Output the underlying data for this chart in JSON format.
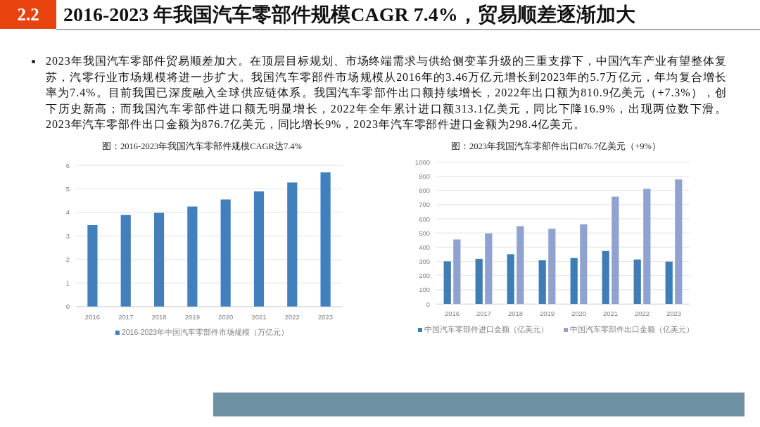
{
  "chart_data": [
    {
      "type": "other",
      "title": "2016-2023 年我国汽车零部件规模CAGR 7.4%，贸易顺差逐渐加大",
      "annotations": [
        "2.2",
        "2023年我国汽车零部件贸易顺差加大。在顶层目标规划、市场终端需求与供给侧变革升级的三重支撑下，中国汽车产业有望整体复苏，汽零行业市场规模将进一步扩大。我国汽车零部件市场规模从2016年的3.46万亿元增长到2023年的5.7万亿元，年均复合增长率为7.4%。目前我国已深度融入全球供应链体系。我国汽车零部件出口额持续增长，2022年出口额为810.9亿美元（+7.3%），创下历史新高；而我国汽车零部件进口额无明显增长，2022年全年累计进口额313.1亿美元，同比下降16.9%，出现两位数下滑。2023年汽车零部件出口金额为876.7亿美元，同比增长9%，2023年汽车零部件进口金额为298.4亿美元。"
      ]
    },
    {
      "type": "bar",
      "title": "图：2016-2023年我国汽车零部件规模CAGR达7.4%",
      "categories": [
        "2016",
        "2017",
        "2018",
        "2019",
        "2020",
        "2021",
        "2022",
        "2023"
      ],
      "series": [
        {
          "name": "2016-2023年中国汽车零部件市场规模（万亿元）",
          "color": "#4280bd",
          "values": [
            3.46,
            3.89,
            3.98,
            4.25,
            4.55,
            4.89,
            5.27,
            5.7
          ]
        }
      ],
      "ylim": [
        0,
        6
      ],
      "yticks": [
        0,
        1,
        2,
        3,
        4,
        5,
        6
      ],
      "grid": "y",
      "legend": "bottom"
    },
    {
      "type": "bar",
      "title": "图：2023年我国汽车零部件出口876.7亿美元（+9%）",
      "categories": [
        "2016",
        "2017",
        "2018",
        "2019",
        "2020",
        "2021",
        "2022",
        "2023"
      ],
      "series": [
        {
          "name": "中国汽车零部件进口金额（亿美元）",
          "color": "#3f7db6",
          "values": [
            300,
            318,
            350,
            307,
            323,
            373,
            313,
            298
          ]
        },
        {
          "name": "中国汽车零部件出口金额（亿美元）",
          "color": "#8fa2d0",
          "values": [
            454,
            497,
            548,
            530,
            561,
            756,
            811,
            877
          ]
        }
      ],
      "ylim": [
        0,
        1000
      ],
      "yticks": [
        0,
        100,
        200,
        300,
        400,
        500,
        600,
        700,
        800,
        900,
        1000
      ],
      "grid": "y",
      "legend": "bottom"
    }
  ]
}
